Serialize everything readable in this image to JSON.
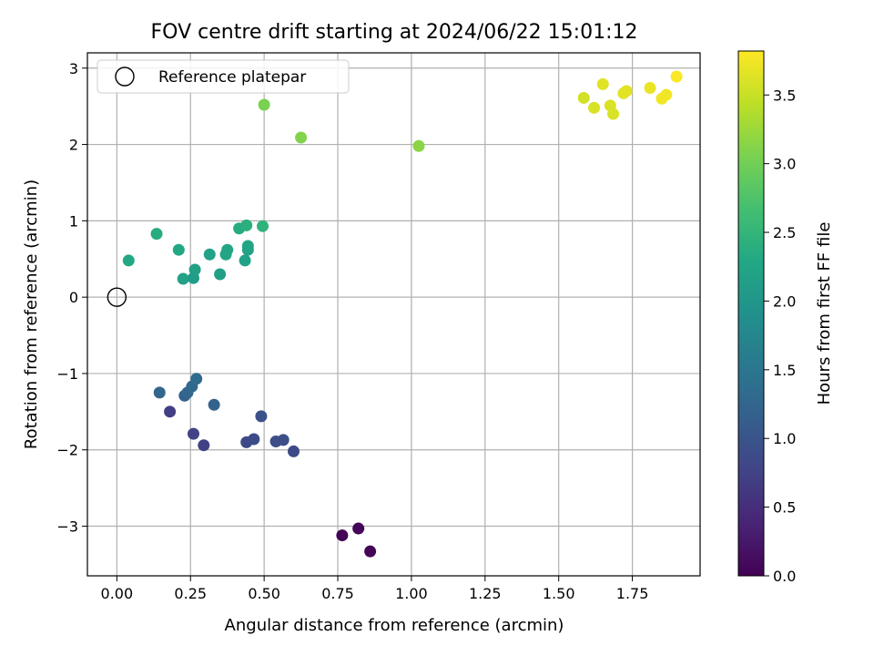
{
  "chart_data": {
    "type": "scatter",
    "title": "FOV centre drift starting at 2024/06/22 15:01:12",
    "xlabel": "Angular distance from reference (arcmin)",
    "ylabel": "Rotation from reference (arcmin)",
    "xlim": [
      -0.1,
      1.98
    ],
    "ylim": [
      -3.65,
      3.2
    ],
    "xticks": [
      0.0,
      0.25,
      0.5,
      0.75,
      1.0,
      1.25,
      1.5,
      1.75
    ],
    "xtick_labels": [
      "0.00",
      "0.25",
      "0.50",
      "0.75",
      "1.00",
      "1.25",
      "1.50",
      "1.75"
    ],
    "yticks": [
      -3,
      -2,
      -1,
      0,
      1,
      2,
      3
    ],
    "ytick_labels": [
      "−3",
      "−2",
      "−1",
      "0",
      "1",
      "2",
      "3"
    ],
    "grid": true,
    "legend": {
      "placement": "top-left",
      "entries": [
        "Reference platepar"
      ]
    },
    "reference_point": {
      "x": 0.0,
      "y": 0.0,
      "label": "Reference platepar"
    },
    "colorbar": {
      "label": "Hours from first FF file",
      "colormap": "viridis",
      "range": [
        0.0,
        3.82
      ],
      "ticks": [
        0.0,
        0.5,
        1.0,
        1.5,
        2.0,
        2.5,
        3.0,
        3.5
      ],
      "tick_labels": [
        "0.0",
        "0.5",
        "1.0",
        "1.5",
        "2.0",
        "2.5",
        "3.0",
        "3.5"
      ]
    },
    "points": [
      {
        "x": 0.765,
        "y": -3.12,
        "c": 0.02
      },
      {
        "x": 0.82,
        "y": -3.03,
        "c": 0.06
      },
      {
        "x": 0.86,
        "y": -3.33,
        "c": 0.04
      },
      {
        "x": 0.18,
        "y": -1.5,
        "c": 0.7
      },
      {
        "x": 0.26,
        "y": -1.79,
        "c": 0.75
      },
      {
        "x": 0.295,
        "y": -1.94,
        "c": 0.72
      },
      {
        "x": 0.44,
        "y": -1.9,
        "c": 0.85
      },
      {
        "x": 0.465,
        "y": -1.86,
        "c": 0.88
      },
      {
        "x": 0.49,
        "y": -1.56,
        "c": 0.95
      },
      {
        "x": 0.54,
        "y": -1.89,
        "c": 0.9
      },
      {
        "x": 0.565,
        "y": -1.87,
        "c": 0.92
      },
      {
        "x": 0.6,
        "y": -2.02,
        "c": 0.85
      },
      {
        "x": 0.145,
        "y": -1.25,
        "c": 1.25
      },
      {
        "x": 0.23,
        "y": -1.29,
        "c": 1.2
      },
      {
        "x": 0.24,
        "y": -1.25,
        "c": 1.25
      },
      {
        "x": 0.255,
        "y": -1.17,
        "c": 1.3
      },
      {
        "x": 0.27,
        "y": -1.07,
        "c": 1.35
      },
      {
        "x": 0.33,
        "y": -1.41,
        "c": 1.2
      },
      {
        "x": 0.04,
        "y": 0.48,
        "c": 2.3
      },
      {
        "x": 0.135,
        "y": 0.83,
        "c": 2.35
      },
      {
        "x": 0.21,
        "y": 0.62,
        "c": 2.3
      },
      {
        "x": 0.225,
        "y": 0.24,
        "c": 2.2
      },
      {
        "x": 0.26,
        "y": 0.25,
        "c": 2.1
      },
      {
        "x": 0.265,
        "y": 0.36,
        "c": 2.15
      },
      {
        "x": 0.315,
        "y": 0.56,
        "c": 2.2
      },
      {
        "x": 0.35,
        "y": 0.3,
        "c": 2.15
      },
      {
        "x": 0.37,
        "y": 0.56,
        "c": 2.25
      },
      {
        "x": 0.375,
        "y": 0.62,
        "c": 2.25
      },
      {
        "x": 0.415,
        "y": 0.9,
        "c": 2.35
      },
      {
        "x": 0.435,
        "y": 0.48,
        "c": 2.2
      },
      {
        "x": 0.44,
        "y": 0.94,
        "c": 2.4
      },
      {
        "x": 0.445,
        "y": 0.62,
        "c": 2.2
      },
      {
        "x": 0.445,
        "y": 0.67,
        "c": 2.25
      },
      {
        "x": 0.495,
        "y": 0.93,
        "c": 2.45
      },
      {
        "x": 0.5,
        "y": 2.52,
        "c": 3.05
      },
      {
        "x": 0.625,
        "y": 2.09,
        "c": 3.1
      },
      {
        "x": 1.025,
        "y": 1.98,
        "c": 3.15
      },
      {
        "x": 1.585,
        "y": 2.61,
        "c": 3.55
      },
      {
        "x": 1.62,
        "y": 2.48,
        "c": 3.6
      },
      {
        "x": 1.65,
        "y": 2.79,
        "c": 3.65
      },
      {
        "x": 1.675,
        "y": 2.51,
        "c": 3.6
      },
      {
        "x": 1.685,
        "y": 2.4,
        "c": 3.6
      },
      {
        "x": 1.72,
        "y": 2.67,
        "c": 3.65
      },
      {
        "x": 1.73,
        "y": 2.7,
        "c": 3.65
      },
      {
        "x": 1.81,
        "y": 2.74,
        "c": 3.7
      },
      {
        "x": 1.85,
        "y": 2.6,
        "c": 3.75
      },
      {
        "x": 1.865,
        "y": 2.65,
        "c": 3.75
      },
      {
        "x": 1.9,
        "y": 2.89,
        "c": 3.8
      }
    ]
  }
}
